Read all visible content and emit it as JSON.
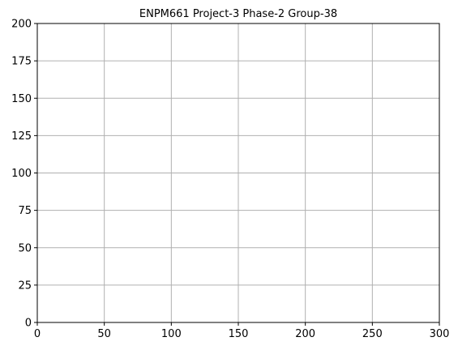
{
  "chart_data": {
    "type": "line",
    "title": "ENPM661 Project-3 Phase-2 Group-38",
    "xlabel": "",
    "ylabel": "",
    "xlim": [
      0,
      300
    ],
    "ylim": [
      0,
      200
    ],
    "xticks": [
      0,
      50,
      100,
      150,
      200,
      250,
      300
    ],
    "yticks": [
      0,
      25,
      50,
      75,
      100,
      125,
      150,
      175,
      200
    ],
    "grid": true,
    "series": []
  },
  "colors": {
    "grid": "#b0b0b0",
    "axis": "#000000",
    "background": "#ffffff"
  }
}
